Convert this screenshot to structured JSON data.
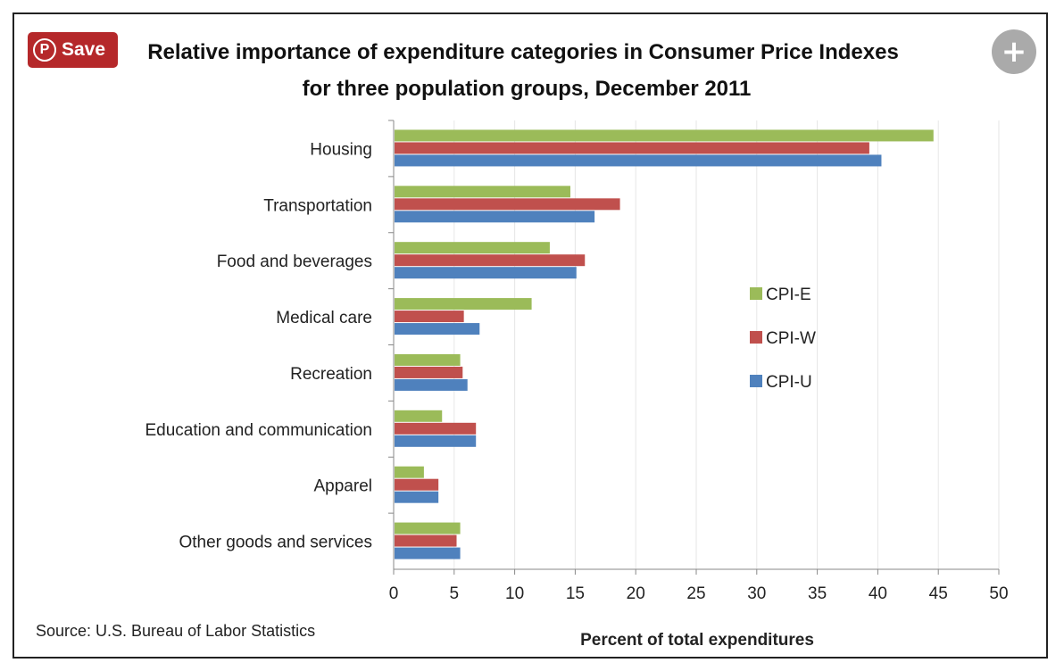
{
  "overlay": {
    "save_label": "Save",
    "pinterest_glyph": "P",
    "expand_glyph": "+"
  },
  "colors": {
    "CPI-E": "#9bbb59",
    "CPI-W": "#c0504d",
    "CPI-U": "#4f81bd"
  },
  "chart_data": {
    "type": "bar",
    "orientation": "horizontal",
    "title_line1": "Relative importance of expenditure categories in Consumer Price Indexes",
    "title_line2": "for three population groups, December 2011",
    "categories": [
      "Housing",
      "Transportation",
      "Food and beverages",
      "Medical care",
      "Recreation",
      "Education and communication",
      "Apparel",
      "Other goods and services"
    ],
    "series": [
      {
        "name": "CPI-E",
        "values": [
          44.6,
          14.6,
          12.9,
          11.4,
          5.5,
          4.0,
          2.5,
          5.5
        ]
      },
      {
        "name": "CPI-W",
        "values": [
          39.3,
          18.7,
          15.8,
          5.8,
          5.7,
          6.8,
          3.7,
          5.2
        ]
      },
      {
        "name": "CPI-U",
        "values": [
          40.3,
          16.6,
          15.1,
          7.1,
          6.1,
          6.8,
          3.7,
          5.5
        ]
      }
    ],
    "xlabel": "Percent of total expenditures",
    "xlim": [
      0,
      50
    ],
    "xticks": [
      "0",
      "5",
      "10",
      "15",
      "20",
      "25",
      "30",
      "35",
      "40",
      "45",
      "50"
    ],
    "grid": true,
    "legend_position": "right-center",
    "source": "Source: U.S. Bureau of Labor Statistics"
  }
}
